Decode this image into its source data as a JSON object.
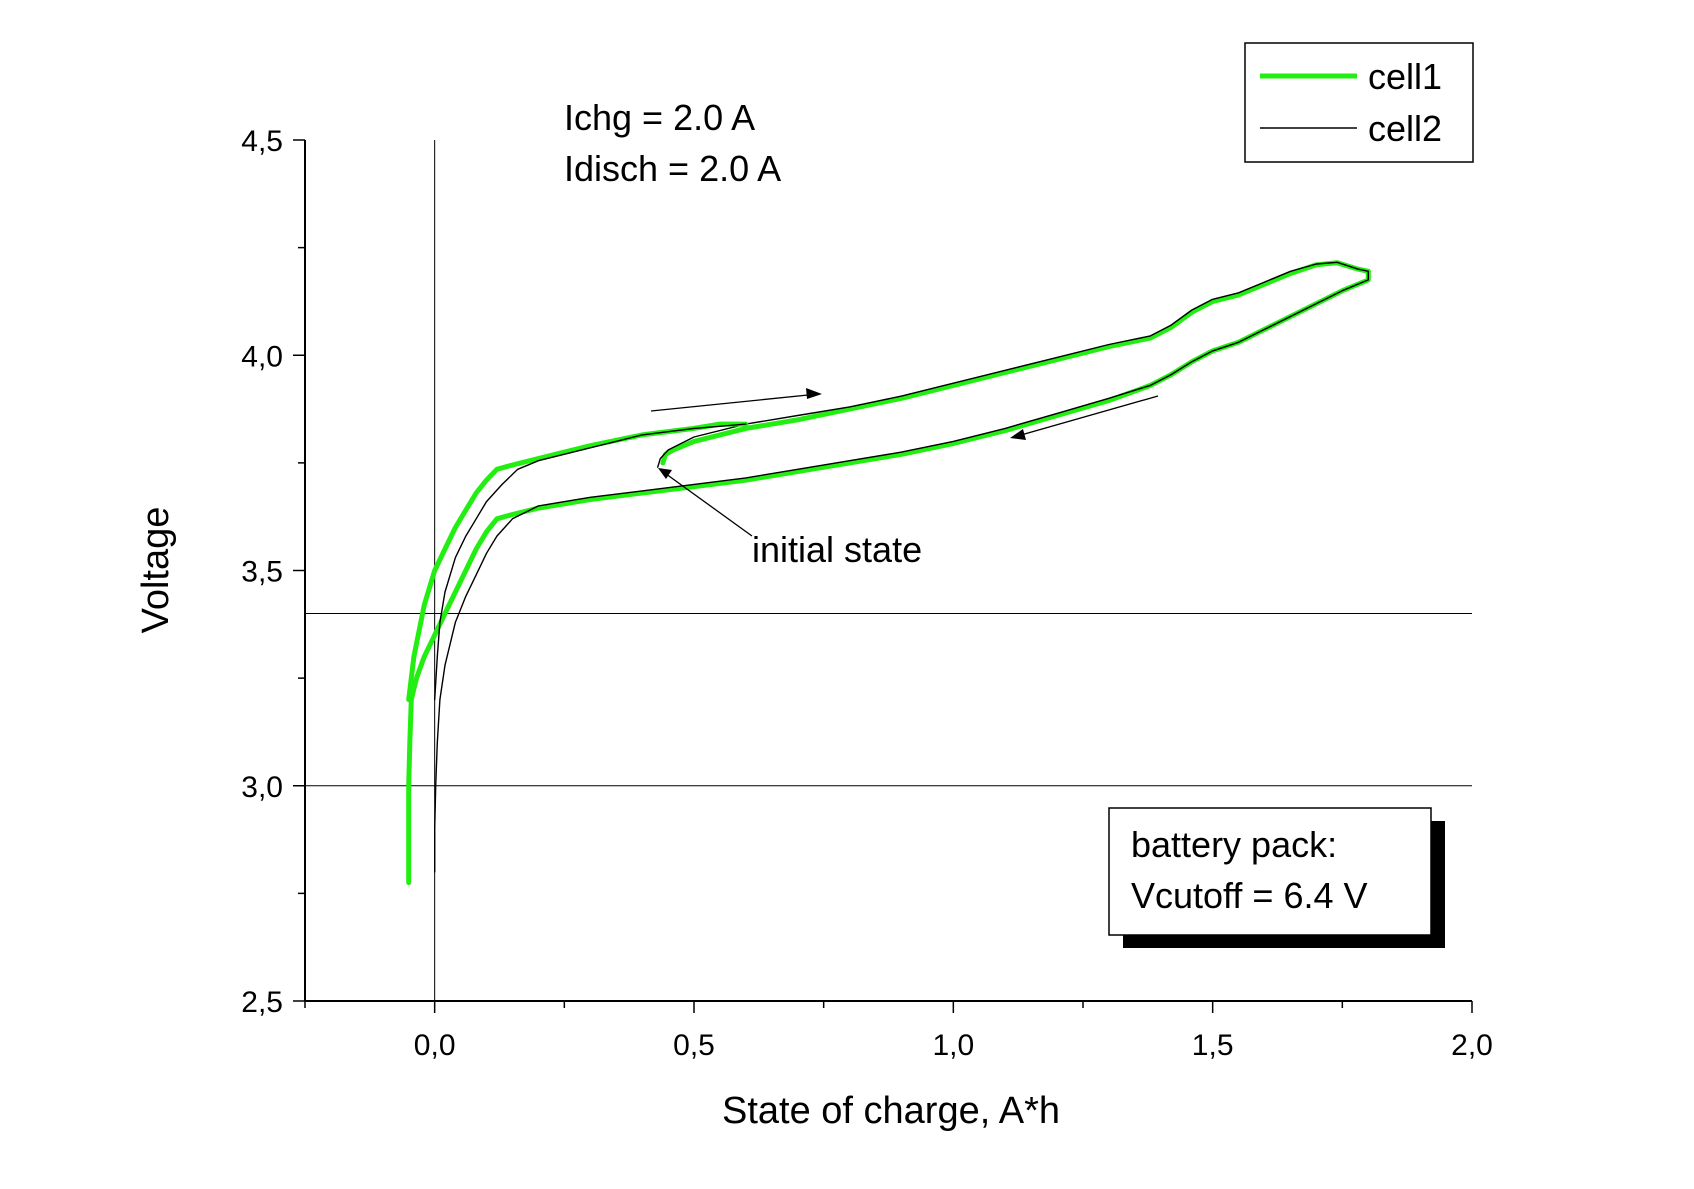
{
  "chart_data": {
    "type": "line",
    "xlabel": "State of charge, A*h",
    "ylabel": "Voltage",
    "xlim": [
      -0.25,
      2.0
    ],
    "ylim": [
      2.5,
      4.5
    ],
    "x_ticks": [
      "0,0",
      "0,5",
      "1,0",
      "1,5",
      "2,0"
    ],
    "x_tick_values": [
      0.0,
      0.5,
      1.0,
      1.5,
      2.0
    ],
    "y_ticks": [
      "2,5",
      "3,0",
      "3,5",
      "4,0",
      "4,5"
    ],
    "y_tick_values": [
      2.5,
      3.0,
      3.5,
      4.0,
      4.5
    ],
    "reference_lines": {
      "vertical_x": 0.0,
      "horizontal_y": [
        3.0,
        3.4
      ]
    },
    "annotations": {
      "current_chg": "Ichg = 2.0 A",
      "current_disch": "Idisch = 2.0 A",
      "initial_state": "initial state",
      "pack_line1": "battery pack:",
      "pack_line2": "Vcutoff = 6.4 V"
    },
    "legend": {
      "position": "top-right"
    },
    "series": [
      {
        "name": "cell1",
        "color": "#22ee11",
        "x": [
          0.44,
          0.445,
          0.46,
          0.5,
          0.6,
          0.7,
          0.8,
          0.9,
          1.0,
          1.1,
          1.2,
          1.3,
          1.38,
          1.42,
          1.46,
          1.5,
          1.55,
          1.6,
          1.65,
          1.7,
          1.74,
          1.78,
          1.8,
          1.8,
          1.75,
          1.7,
          1.6,
          1.55,
          1.5,
          1.46,
          1.42,
          1.38,
          1.3,
          1.2,
          1.1,
          1.0,
          0.9,
          0.8,
          0.7,
          0.6,
          0.5,
          0.4,
          0.3,
          0.2,
          0.15,
          0.12,
          0.1,
          0.08,
          0.06,
          0.04,
          0.02,
          0.0,
          -0.02,
          -0.035,
          -0.045,
          -0.048,
          -0.05,
          -0.05,
          -0.05,
          -0.05
        ],
        "y": [
          3.75,
          3.77,
          3.78,
          3.8,
          3.83,
          3.85,
          3.875,
          3.9,
          3.93,
          3.96,
          3.99,
          4.02,
          4.04,
          4.065,
          4.1,
          4.125,
          4.14,
          4.165,
          4.19,
          4.21,
          4.215,
          4.2,
          4.195,
          4.175,
          4.15,
          4.12,
          4.06,
          4.03,
          4.01,
          3.985,
          3.955,
          3.93,
          3.895,
          3.86,
          3.825,
          3.795,
          3.77,
          3.75,
          3.73,
          3.71,
          3.695,
          3.68,
          3.665,
          3.645,
          3.63,
          3.62,
          3.59,
          3.55,
          3.5,
          3.45,
          3.4,
          3.35,
          3.3,
          3.25,
          3.2,
          3.1,
          3.0,
          2.9,
          2.8,
          2.775
        ]
      },
      {
        "name": "cell2",
        "color": "#000000",
        "x": [
          0.43,
          0.435,
          0.45,
          0.5,
          0.6,
          0.7,
          0.8,
          0.9,
          1.0,
          1.1,
          1.2,
          1.3,
          1.38,
          1.42,
          1.46,
          1.5,
          1.55,
          1.6,
          1.65,
          1.7,
          1.74,
          1.78,
          1.8,
          1.8,
          1.75,
          1.7,
          1.6,
          1.55,
          1.5,
          1.46,
          1.42,
          1.38,
          1.3,
          1.2,
          1.1,
          1.0,
          0.9,
          0.8,
          0.7,
          0.6,
          0.5,
          0.4,
          0.3,
          0.2,
          0.15,
          0.12,
          0.1,
          0.08,
          0.06,
          0.04,
          0.03,
          0.02,
          0.01,
          0.005,
          0.002,
          0.0,
          0.0,
          0.0
        ],
        "y": [
          3.74,
          3.76,
          3.78,
          3.81,
          3.84,
          3.86,
          3.88,
          3.905,
          3.935,
          3.965,
          3.995,
          4.025,
          4.045,
          4.07,
          4.105,
          4.13,
          4.145,
          4.17,
          4.195,
          4.212,
          4.216,
          4.2,
          4.195,
          4.175,
          4.15,
          4.12,
          4.06,
          4.03,
          4.01,
          3.985,
          3.955,
          3.93,
          3.9,
          3.865,
          3.83,
          3.8,
          3.775,
          3.755,
          3.735,
          3.715,
          3.7,
          3.685,
          3.67,
          3.65,
          3.62,
          3.58,
          3.54,
          3.49,
          3.44,
          3.38,
          3.33,
          3.28,
          3.2,
          3.1,
          3.0,
          2.9,
          2.82,
          2.8
        ]
      },
      {
        "name": "",
        "color": "#22ee11",
        "x": [
          0.6,
          0.55,
          0.5,
          0.4,
          0.3,
          0.2,
          0.15,
          0.12,
          0.1,
          0.08,
          0.06,
          0.04,
          0.02,
          0.0,
          -0.02,
          -0.04,
          -0.05
        ],
        "y": [
          3.84,
          3.84,
          3.83,
          3.815,
          3.79,
          3.76,
          3.745,
          3.735,
          3.71,
          3.68,
          3.64,
          3.6,
          3.55,
          3.5,
          3.42,
          3.3,
          3.2
        ]
      },
      {
        "name": "",
        "color": "#000000",
        "x": [
          0.6,
          0.55,
          0.5,
          0.4,
          0.3,
          0.2,
          0.16,
          0.13,
          0.1,
          0.08,
          0.06,
          0.04,
          0.02,
          0.01,
          0.005,
          0.0
        ],
        "y": [
          3.84,
          3.835,
          3.83,
          3.815,
          3.785,
          3.755,
          3.735,
          3.7,
          3.66,
          3.62,
          3.58,
          3.53,
          3.45,
          3.38,
          3.3,
          3.2
        ]
      }
    ]
  }
}
